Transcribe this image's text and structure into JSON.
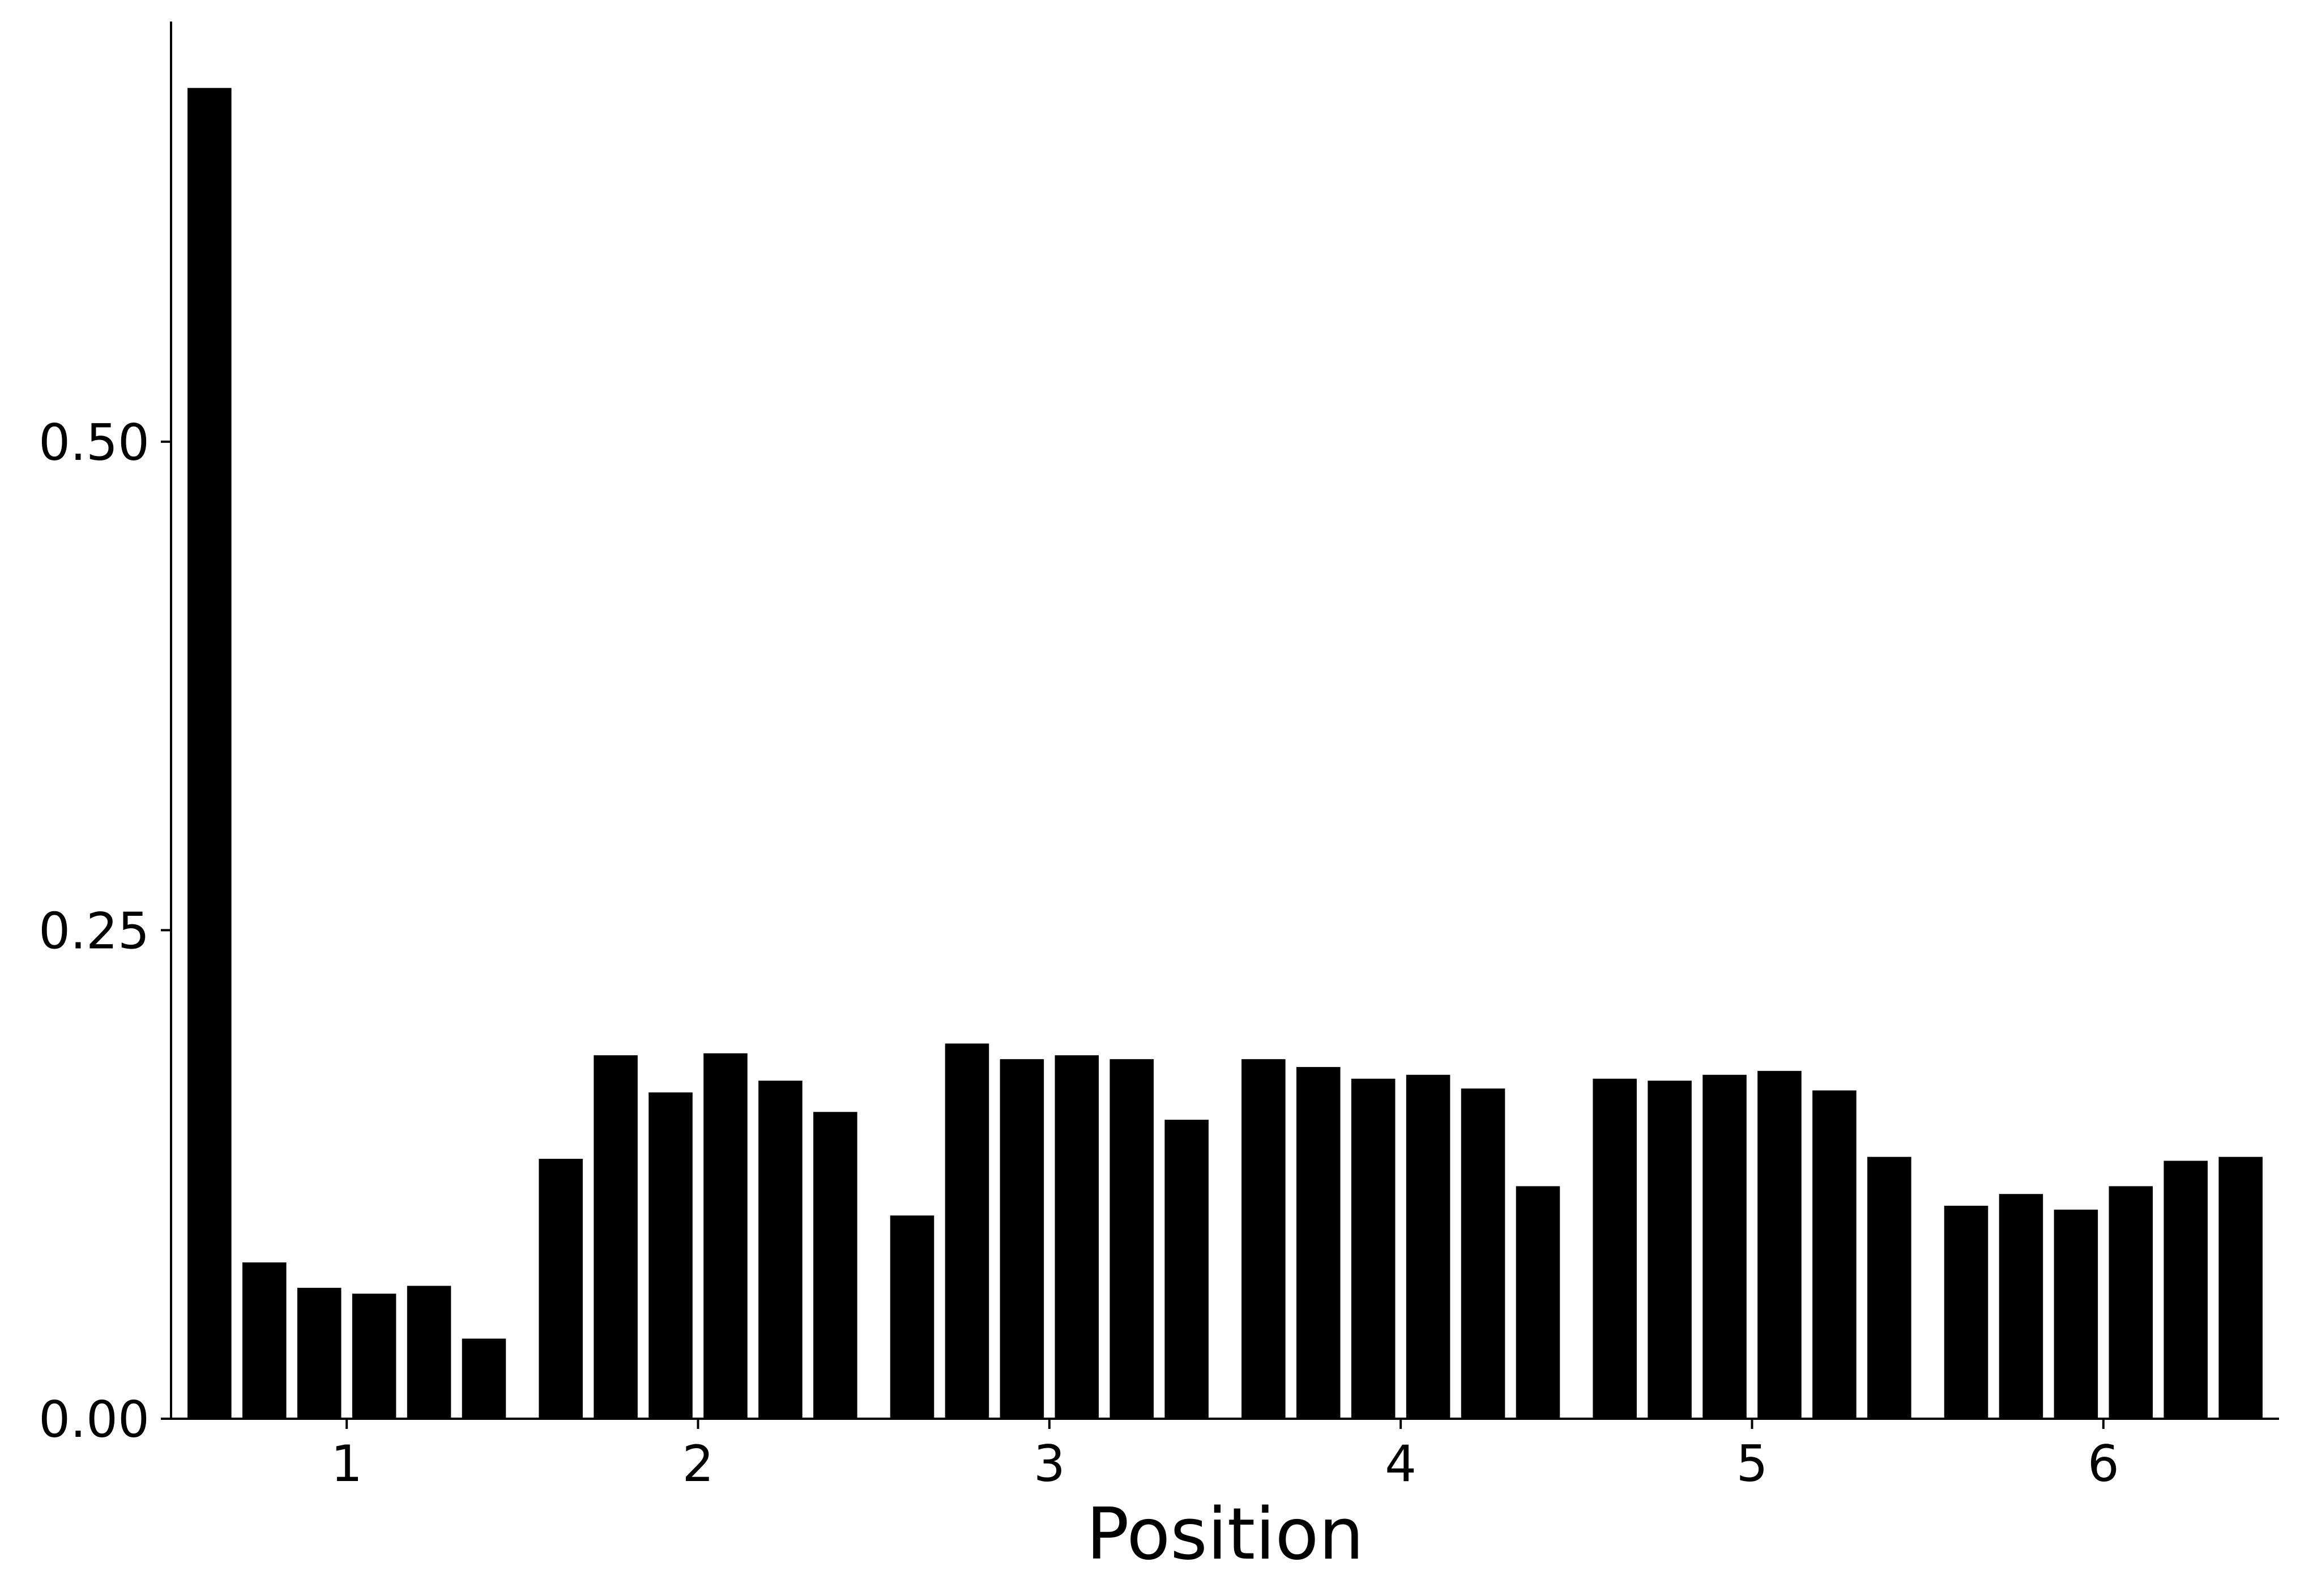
{
  "chart_data": {
    "type": "bar",
    "title": "",
    "xlabel": "Position",
    "ylabel": "",
    "xlim": [
      0.5,
      6.5
    ],
    "ylim": [
      0,
      0.715
    ],
    "grid": false,
    "legend": "none",
    "bar_color": "#000000",
    "xticks": [
      1,
      2,
      3,
      4,
      5,
      6
    ],
    "xtick_labels": [
      "1",
      "2",
      "3",
      "4",
      "5",
      "6"
    ],
    "yticks": [
      0.0,
      0.25,
      0.5
    ],
    "ytick_labels": [
      "0.00",
      "0.25",
      "0.50"
    ],
    "groups": [
      {
        "position": 1,
        "values": [
          0.681,
          0.08,
          0.067,
          0.064,
          0.068,
          0.041
        ]
      },
      {
        "position": 2,
        "values": [
          0.133,
          0.186,
          0.167,
          0.187,
          0.173,
          0.157
        ]
      },
      {
        "position": 3,
        "values": [
          0.104,
          0.192,
          0.184,
          0.186,
          0.184,
          0.153
        ]
      },
      {
        "position": 4,
        "values": [
          0.184,
          0.18,
          0.174,
          0.176,
          0.169,
          0.119
        ]
      },
      {
        "position": 5,
        "values": [
          0.174,
          0.173,
          0.176,
          0.178,
          0.168,
          0.134
        ]
      },
      {
        "position": 6,
        "values": [
          0.109,
          0.115,
          0.107,
          0.119,
          0.132,
          0.134
        ]
      }
    ]
  }
}
